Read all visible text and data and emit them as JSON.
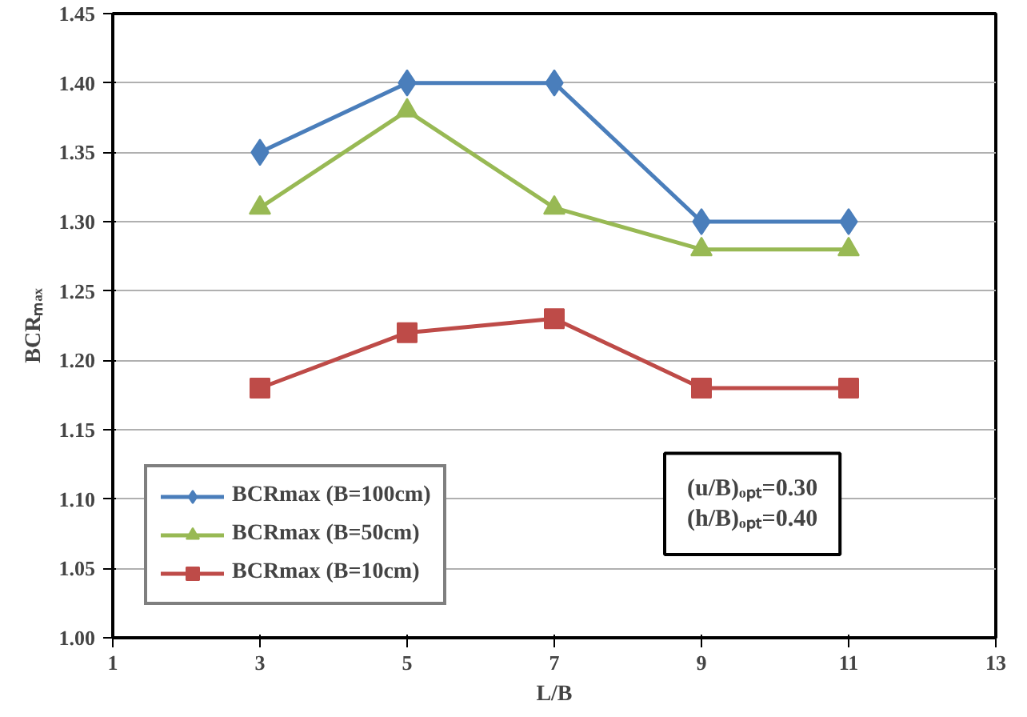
{
  "chart_data": {
    "type": "line",
    "xlabel": "L/B",
    "ylabel": "BCRₘₐₓ",
    "x": [
      3,
      5,
      7,
      9,
      11
    ],
    "series": [
      {
        "name": "BCRmax (B=100cm)",
        "color": "#4a7ebb",
        "marker": "diamond",
        "values": [
          1.35,
          1.4,
          1.4,
          1.3,
          1.3
        ]
      },
      {
        "name": "BCRmax (B=50cm)",
        "color": "#98b954",
        "marker": "triangle",
        "values": [
          1.31,
          1.38,
          1.31,
          1.28,
          1.28
        ]
      },
      {
        "name": "BCRmax (B=10cm)",
        "color": "#be4b48",
        "marker": "square",
        "values": [
          1.18,
          1.22,
          1.23,
          1.18,
          1.18
        ]
      }
    ],
    "xlim": [
      1,
      13
    ],
    "xticks": [
      1,
      3,
      5,
      7,
      9,
      11,
      13
    ],
    "ylim": [
      1.0,
      1.45
    ],
    "yticks": [
      {
        "value": 1.0,
        "label": "1.00"
      },
      {
        "value": 1.05,
        "label": "1.05"
      },
      {
        "value": 1.1,
        "label": "1.10"
      },
      {
        "value": 1.15,
        "label": "1.15"
      },
      {
        "value": 1.2,
        "label": "1.20"
      },
      {
        "value": 1.25,
        "label": "1.25"
      },
      {
        "value": 1.3,
        "label": "1.30"
      },
      {
        "value": 1.35,
        "label": "1.35"
      },
      {
        "value": 1.4,
        "label": "1.40"
      },
      {
        "value": 1.45,
        "label": "1.45"
      }
    ],
    "grid": "y",
    "legend": "bottom left",
    "annotations": [
      "(u/B)ₒₚₜ=0.30\n(h/B)ₒₚₜ=0.40"
    ]
  }
}
